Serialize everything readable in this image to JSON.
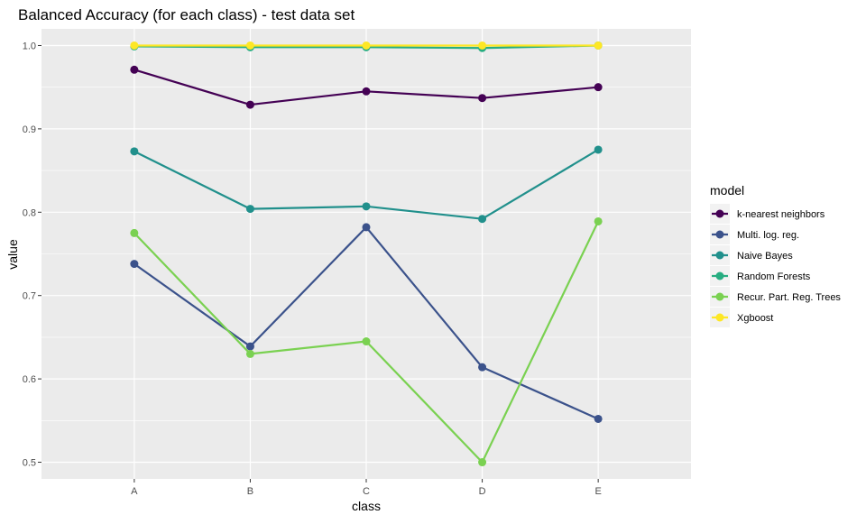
{
  "chart_data": {
    "type": "line",
    "title": "Balanced Accuracy (for each class) - test data set",
    "xlabel": "class",
    "ylabel": "value",
    "categories": [
      "A",
      "B",
      "C",
      "D",
      "E"
    ],
    "ylim": [
      0.48,
      1.02
    ],
    "yticks": [
      0.5,
      0.6,
      0.7,
      0.8,
      0.9,
      1.0
    ],
    "ytick_labels": [
      "0.5",
      "0.6",
      "0.7",
      "0.8",
      "0.9",
      "1.0"
    ],
    "grid": true,
    "legend": {
      "title": "model",
      "placement": "right"
    },
    "series": [
      {
        "name": "k-nearest neighbors",
        "color": "#440154",
        "values": [
          0.971,
          0.929,
          0.945,
          0.937,
          0.95
        ]
      },
      {
        "name": "Multi. log. reg.",
        "color": "#3B528B",
        "values": [
          0.738,
          0.639,
          0.782,
          0.614,
          0.552
        ]
      },
      {
        "name": "Naive Bayes",
        "color": "#21908C",
        "values": [
          0.873,
          0.804,
          0.807,
          0.792,
          0.875
        ]
      },
      {
        "name": "Random Forests",
        "color": "#27AD81",
        "values": [
          0.999,
          0.998,
          0.998,
          0.997,
          1.0
        ]
      },
      {
        "name": "Recur. Part. Reg. Trees",
        "color": "#7AD151",
        "values": [
          0.775,
          0.63,
          0.645,
          0.5,
          0.789
        ]
      },
      {
        "name": "Xgboost",
        "color": "#FDE725",
        "values": [
          1.0,
          1.0,
          1.0,
          1.0,
          1.0
        ]
      }
    ]
  }
}
